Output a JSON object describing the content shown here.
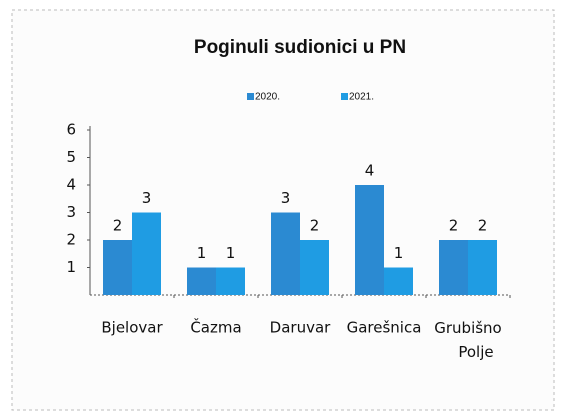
{
  "chart_data": {
    "type": "bar",
    "title": "Poginuli sudionici u PN",
    "categories": [
      "Bjelovar",
      "Čazma",
      "Daruvar",
      "Garešnica",
      "Grubišno Polje"
    ],
    "series": [
      {
        "name": "2020.",
        "color": "#2b8ad2",
        "values": [
          2,
          1,
          3,
          4,
          2
        ]
      },
      {
        "name": "2021.",
        "color": "#1f9ce3",
        "values": [
          3,
          1,
          2,
          1,
          2
        ]
      }
    ],
    "ylim": [
      0,
      6
    ],
    "yticks": [
      1,
      2,
      3,
      4,
      5,
      6
    ],
    "grid": false
  }
}
